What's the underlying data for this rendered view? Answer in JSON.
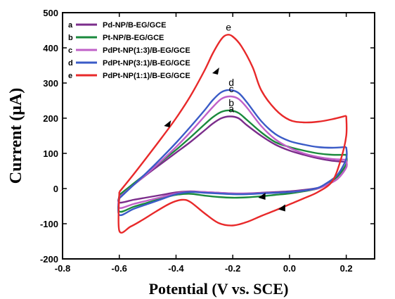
{
  "chart_data": {
    "type": "line",
    "xlabel": "Potential (V vs. SCE)",
    "ylabel": "Current (μA)",
    "xlim": [
      -0.8,
      0.3
    ],
    "ylim": [
      -200,
      500
    ],
    "xticks": [
      -0.8,
      -0.6,
      -0.4,
      -0.2,
      0.0,
      0.2
    ],
    "xtick_labels": [
      "-0.8",
      "-0.6",
      "-0.4",
      "-0.2",
      "0.0",
      "0.2"
    ],
    "yticks": [
      -200,
      -100,
      0,
      100,
      200,
      300,
      400,
      500
    ],
    "ytick_labels": [
      "-200",
      "-100",
      "0",
      "100",
      "200",
      "300",
      "400",
      "500"
    ],
    "legend_position": "top-left",
    "series": [
      {
        "key": "a",
        "name": "Pd-NP/B-EG/GCE",
        "color": "#7b2d8b",
        "forward": [
          [
            -0.6,
            -22
          ],
          [
            -0.55,
            10
          ],
          [
            -0.5,
            42
          ],
          [
            -0.45,
            72
          ],
          [
            -0.4,
            102
          ],
          [
            -0.35,
            132
          ],
          [
            -0.3,
            165
          ],
          [
            -0.27,
            185
          ],
          [
            -0.24,
            200
          ],
          [
            -0.21,
            205
          ],
          [
            -0.18,
            200
          ],
          [
            -0.15,
            180
          ],
          [
            -0.1,
            150
          ],
          [
            -0.05,
            125
          ],
          [
            0.0,
            108
          ],
          [
            0.05,
            96
          ],
          [
            0.1,
            86
          ],
          [
            0.15,
            79
          ],
          [
            0.2,
            76
          ]
        ],
        "reverse": [
          [
            0.2,
            76
          ],
          [
            0.2,
            60
          ],
          [
            0.17,
            28
          ],
          [
            0.13,
            10
          ],
          [
            0.1,
            2
          ],
          [
            0.05,
            -4
          ],
          [
            0.0,
            -8
          ],
          [
            -0.05,
            -10
          ],
          [
            -0.1,
            -12
          ],
          [
            -0.15,
            -14
          ],
          [
            -0.2,
            -14
          ],
          [
            -0.25,
            -12
          ],
          [
            -0.3,
            -10
          ],
          [
            -0.35,
            -8
          ],
          [
            -0.4,
            -11
          ],
          [
            -0.45,
            -18
          ],
          [
            -0.5,
            -25
          ],
          [
            -0.55,
            -32
          ],
          [
            -0.6,
            -40
          ],
          [
            -0.6,
            -22
          ]
        ]
      },
      {
        "key": "b",
        "name": "Pt-NP/B-EG/GCE",
        "color": "#1a8a3c",
        "forward": [
          [
            -0.6,
            -18
          ],
          [
            -0.55,
            14
          ],
          [
            -0.5,
            46
          ],
          [
            -0.45,
            78
          ],
          [
            -0.4,
            110
          ],
          [
            -0.35,
            145
          ],
          [
            -0.3,
            182
          ],
          [
            -0.27,
            203
          ],
          [
            -0.24,
            218
          ],
          [
            -0.21,
            222
          ],
          [
            -0.18,
            215
          ],
          [
            -0.15,
            195
          ],
          [
            -0.1,
            160
          ],
          [
            -0.05,
            132
          ],
          [
            0.0,
            118
          ],
          [
            0.05,
            108
          ],
          [
            0.1,
            100
          ],
          [
            0.15,
            96
          ],
          [
            0.2,
            96
          ]
        ],
        "reverse": [
          [
            0.2,
            96
          ],
          [
            0.2,
            70
          ],
          [
            0.17,
            35
          ],
          [
            0.13,
            12
          ],
          [
            0.1,
            0
          ],
          [
            0.05,
            -8
          ],
          [
            0.0,
            -14
          ],
          [
            -0.05,
            -18
          ],
          [
            -0.1,
            -22
          ],
          [
            -0.15,
            -25
          ],
          [
            -0.2,
            -26
          ],
          [
            -0.25,
            -24
          ],
          [
            -0.3,
            -20
          ],
          [
            -0.35,
            -15
          ],
          [
            -0.4,
            -18
          ],
          [
            -0.45,
            -28
          ],
          [
            -0.5,
            -40
          ],
          [
            -0.55,
            -52
          ],
          [
            -0.6,
            -65
          ],
          [
            -0.6,
            -18
          ]
        ]
      },
      {
        "key": "c",
        "name": "PdPt-NP(1:3)/B-EG/GCE",
        "color": "#c060c8",
        "forward": [
          [
            -0.6,
            -25
          ],
          [
            -0.55,
            10
          ],
          [
            -0.5,
            44
          ],
          [
            -0.45,
            80
          ],
          [
            -0.4,
            118
          ],
          [
            -0.35,
            160
          ],
          [
            -0.3,
            205
          ],
          [
            -0.27,
            232
          ],
          [
            -0.24,
            255
          ],
          [
            -0.21,
            262
          ],
          [
            -0.18,
            255
          ],
          [
            -0.15,
            230
          ],
          [
            -0.1,
            178
          ],
          [
            -0.05,
            140
          ],
          [
            0.0,
            116
          ],
          [
            0.05,
            100
          ],
          [
            0.1,
            90
          ],
          [
            0.15,
            84
          ],
          [
            0.2,
            82
          ]
        ],
        "reverse": [
          [
            0.2,
            82
          ],
          [
            0.2,
            60
          ],
          [
            0.17,
            28
          ],
          [
            0.13,
            10
          ],
          [
            0.1,
            0
          ],
          [
            0.05,
            -6
          ],
          [
            0.0,
            -10
          ],
          [
            -0.05,
            -12
          ],
          [
            -0.1,
            -13
          ],
          [
            -0.15,
            -14
          ],
          [
            -0.2,
            -14
          ],
          [
            -0.25,
            -12
          ],
          [
            -0.3,
            -10
          ],
          [
            -0.35,
            -9
          ],
          [
            -0.4,
            -14
          ],
          [
            -0.45,
            -24
          ],
          [
            -0.5,
            -34
          ],
          [
            -0.55,
            -44
          ],
          [
            -0.6,
            -55
          ],
          [
            -0.6,
            -25
          ]
        ]
      },
      {
        "key": "d",
        "name": "PdPt-NP(3:1)/B-EG/GCE",
        "color": "#3a5bc7",
        "forward": [
          [
            -0.6,
            -28
          ],
          [
            -0.55,
            10
          ],
          [
            -0.5,
            48
          ],
          [
            -0.45,
            88
          ],
          [
            -0.4,
            130
          ],
          [
            -0.35,
            175
          ],
          [
            -0.3,
            222
          ],
          [
            -0.27,
            252
          ],
          [
            -0.24,
            274
          ],
          [
            -0.21,
            280
          ],
          [
            -0.18,
            272
          ],
          [
            -0.15,
            245
          ],
          [
            -0.1,
            192
          ],
          [
            -0.05,
            155
          ],
          [
            0.0,
            135
          ],
          [
            0.05,
            125
          ],
          [
            0.1,
            118
          ],
          [
            0.15,
            116
          ],
          [
            0.2,
            118
          ]
        ],
        "reverse": [
          [
            0.2,
            118
          ],
          [
            0.2,
            85
          ],
          [
            0.17,
            40
          ],
          [
            0.13,
            15
          ],
          [
            0.1,
            2
          ],
          [
            0.05,
            -6
          ],
          [
            0.0,
            -10
          ],
          [
            -0.05,
            -12
          ],
          [
            -0.1,
            -14
          ],
          [
            -0.15,
            -16
          ],
          [
            -0.2,
            -16
          ],
          [
            -0.25,
            -14
          ],
          [
            -0.3,
            -12
          ],
          [
            -0.35,
            -10
          ],
          [
            -0.4,
            -16
          ],
          [
            -0.45,
            -30
          ],
          [
            -0.5,
            -44
          ],
          [
            -0.55,
            -58
          ],
          [
            -0.6,
            -75
          ],
          [
            -0.6,
            -28
          ]
        ]
      },
      {
        "key": "e",
        "name": "PdPt-NP(1:1)/B-EG/GCE",
        "color": "#e8292a",
        "forward": [
          [
            -0.6,
            -10
          ],
          [
            -0.55,
            40
          ],
          [
            -0.5,
            92
          ],
          [
            -0.45,
            145
          ],
          [
            -0.4,
            200
          ],
          [
            -0.35,
            262
          ],
          [
            -0.3,
            335
          ],
          [
            -0.27,
            385
          ],
          [
            -0.24,
            425
          ],
          [
            -0.22,
            437
          ],
          [
            -0.2,
            432
          ],
          [
            -0.17,
            405
          ],
          [
            -0.13,
            345
          ],
          [
            -0.1,
            280
          ],
          [
            -0.05,
            225
          ],
          [
            0.0,
            195
          ],
          [
            0.05,
            188
          ],
          [
            0.1,
            190
          ],
          [
            0.15,
            197
          ],
          [
            0.2,
            207
          ]
        ],
        "reverse": [
          [
            0.2,
            207
          ],
          [
            0.2,
            150
          ],
          [
            0.18,
            80
          ],
          [
            0.15,
            20
          ],
          [
            0.1,
            -10
          ],
          [
            0.05,
            -28
          ],
          [
            0.0,
            -45
          ],
          [
            -0.05,
            -62
          ],
          [
            -0.1,
            -78
          ],
          [
            -0.15,
            -95
          ],
          [
            -0.2,
            -105
          ],
          [
            -0.25,
            -98
          ],
          [
            -0.3,
            -70
          ],
          [
            -0.35,
            -38
          ],
          [
            -0.38,
            -32
          ],
          [
            -0.42,
            -42
          ],
          [
            -0.47,
            -65
          ],
          [
            -0.52,
            -90
          ],
          [
            -0.56,
            -108
          ],
          [
            -0.6,
            -120
          ],
          [
            -0.6,
            -10
          ]
        ]
      }
    ]
  }
}
